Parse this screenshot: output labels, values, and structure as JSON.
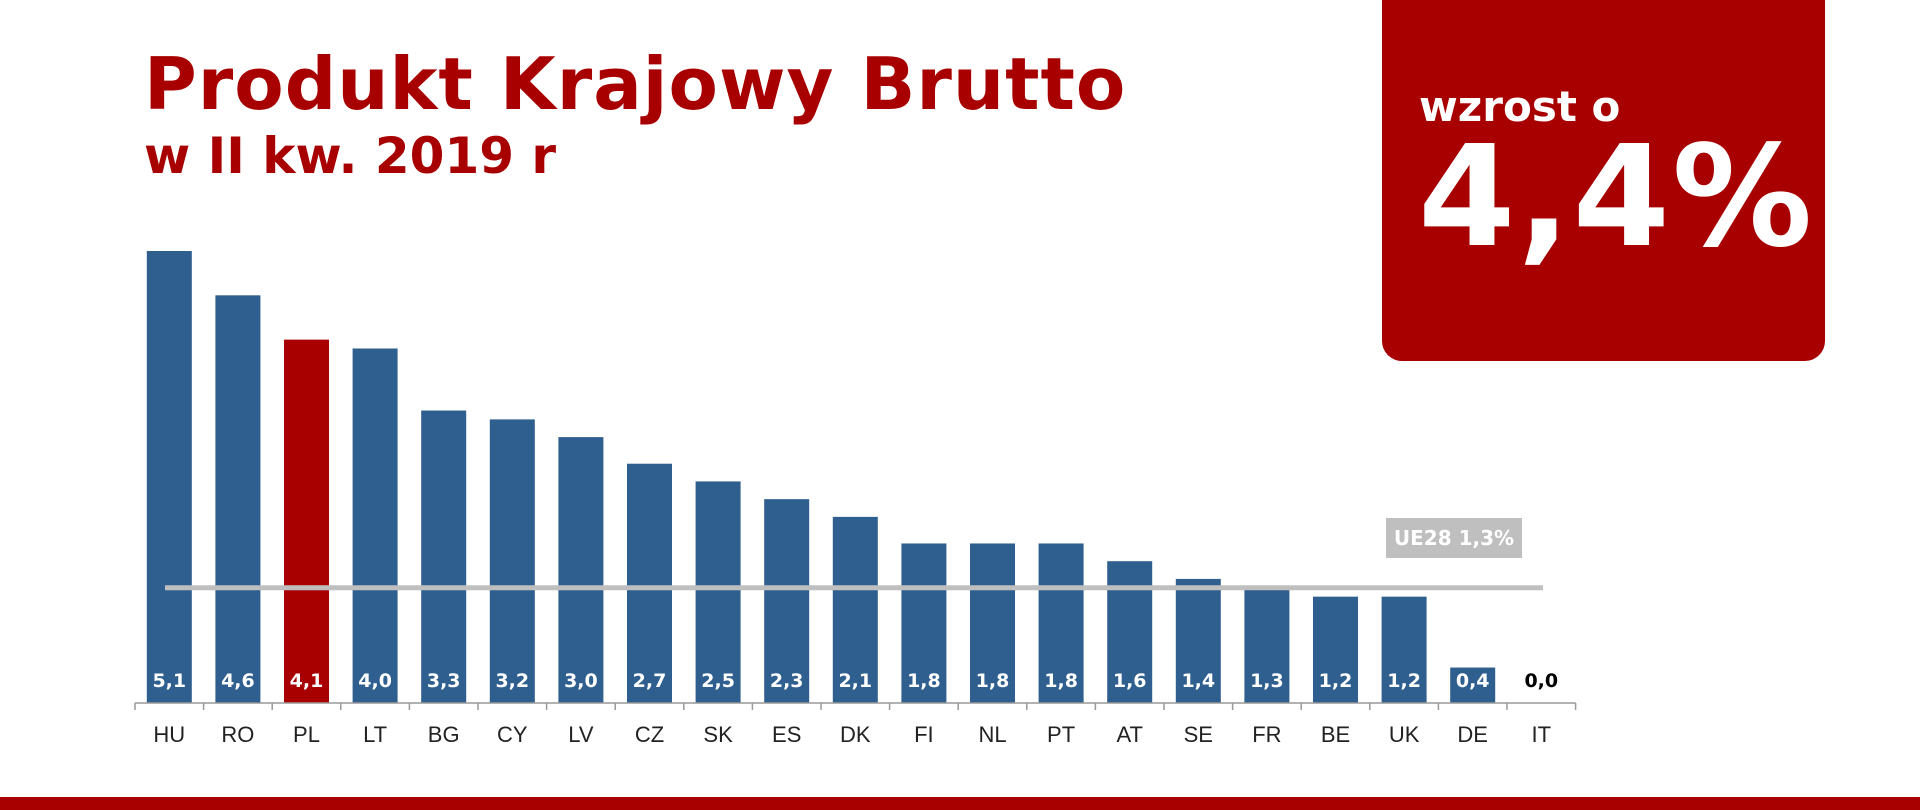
{
  "colors": {
    "accent": "#a80000",
    "bar": "#2f5f8f",
    "bar_highlight": "#a80000",
    "reference_line": "#bfbfbf"
  },
  "header": {
    "title": "Produkt Krajowy Brutto",
    "subtitle": "w II kw. 2019 r"
  },
  "highlight": {
    "label": "wzrost o",
    "value": "4,4%"
  },
  "chart_data": {
    "type": "bar",
    "categories": [
      "HU",
      "RO",
      "PL",
      "LT",
      "BG",
      "CY",
      "LV",
      "CZ",
      "SK",
      "ES",
      "DK",
      "FI",
      "NL",
      "PT",
      "AT",
      "SE",
      "FR",
      "BE",
      "UK",
      "DE",
      "IT"
    ],
    "values": [
      5.1,
      4.6,
      4.1,
      4.0,
      3.3,
      3.2,
      3.0,
      2.7,
      2.5,
      2.3,
      2.1,
      1.8,
      1.8,
      1.8,
      1.6,
      1.4,
      1.3,
      1.2,
      1.2,
      0.4,
      0.0
    ],
    "value_labels": [
      "5,1",
      "4,6",
      "4,1",
      "4,0",
      "3,3",
      "3,2",
      "3,0",
      "2,7",
      "2,5",
      "2,3",
      "2,1",
      "1,8",
      "1,8",
      "1,8",
      "1,6",
      "1,4",
      "1,3",
      "1,2",
      "1,2",
      "0,4",
      "0,0"
    ],
    "highlight_category": "PL",
    "reference": {
      "label": "UE28 1,3%",
      "value": 1.3
    },
    "ylim": [
      0,
      5.1
    ],
    "title": "",
    "xlabel": "",
    "ylabel": "",
    "grid": false,
    "legend": "none"
  }
}
